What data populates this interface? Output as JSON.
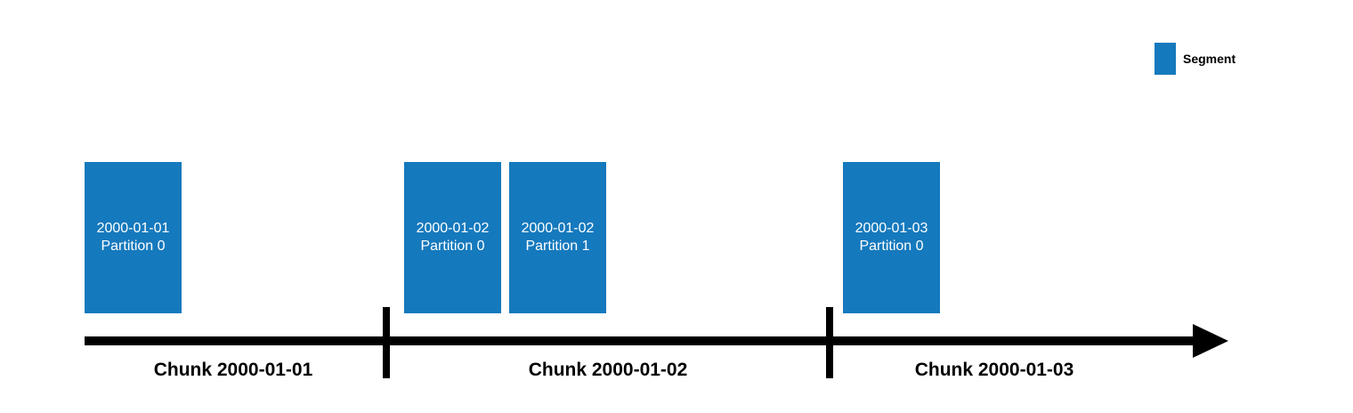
{
  "colors": {
    "segment": "#1579BD",
    "axis": "#000000",
    "text_on_segment": "#FFFFFF"
  },
  "legend": {
    "label": "Segment"
  },
  "segments": [
    {
      "date": "2000-01-01",
      "partition": "Partition 0"
    },
    {
      "date": "2000-01-02",
      "partition": "Partition 0"
    },
    {
      "date": "2000-01-02",
      "partition": "Partition 1"
    },
    {
      "date": "2000-01-03",
      "partition": "Partition 0"
    }
  ],
  "chunks": [
    {
      "label": "Chunk 2000-01-01"
    },
    {
      "label": "Chunk 2000-01-02"
    },
    {
      "label": "Chunk 2000-01-03"
    }
  ]
}
